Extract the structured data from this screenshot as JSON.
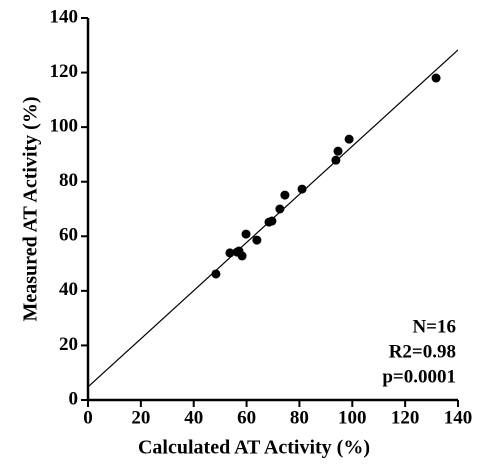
{
  "chart_data": {
    "type": "scatter",
    "x_label": "Calculated AT Activity (%)",
    "y_label": "Measured AT  Activity (%)",
    "annotations": [
      "N=16",
      "R2=0.98",
      "p=0.0001"
    ],
    "color": "#000000",
    "x": [
      48.4,
      53.7,
      56.4,
      57.1,
      58.3,
      59.8,
      63.9,
      68.5,
      69.6,
      72.6,
      74.5,
      81.0,
      93.8,
      94.6,
      98.8,
      131.7
    ],
    "values": [
      46.2,
      53.9,
      54.2,
      54.6,
      52.8,
      60.8,
      58.6,
      65.2,
      65.6,
      70.0,
      75.1,
      77.3,
      87.9,
      91.2,
      95.6,
      118.0
    ],
    "fit_line": {
      "x": [
        0,
        140
      ],
      "y": [
        4.8,
        128.3
      ]
    },
    "xlim": [
      0,
      140
    ],
    "ylim": [
      0,
      140
    ],
    "xticks": [
      0,
      20,
      40,
      60,
      80,
      100,
      120,
      140
    ],
    "yticks": [
      0,
      20,
      40,
      60,
      80,
      100,
      120,
      140
    ]
  }
}
